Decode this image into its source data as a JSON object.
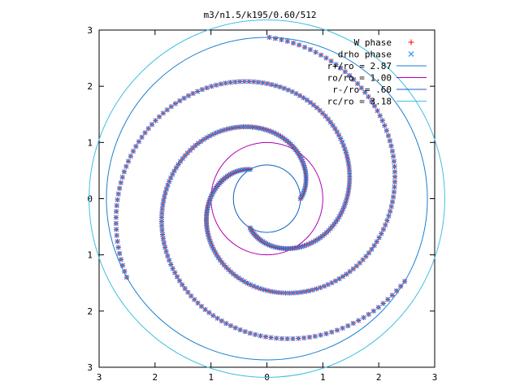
{
  "chart_data": {
    "type": "scatter",
    "title": "m3/n1.5/k195/0.60/512",
    "xlabel": "",
    "ylabel": "",
    "xlim": [
      -3,
      3
    ],
    "ylim": [
      -3,
      3
    ],
    "x_ticks": [
      {
        "value": -3,
        "label": "3"
      },
      {
        "value": -2,
        "label": "2"
      },
      {
        "value": -1,
        "label": "1"
      },
      {
        "value": 0,
        "label": "0"
      },
      {
        "value": 1,
        "label": "1"
      },
      {
        "value": 2,
        "label": "2"
      },
      {
        "value": 3,
        "label": "3"
      }
    ],
    "y_ticks": [
      {
        "value": 3,
        "label": "3"
      },
      {
        "value": 2,
        "label": "2"
      },
      {
        "value": 1,
        "label": "1"
      },
      {
        "value": 0,
        "label": "0"
      },
      {
        "value": -1,
        "label": "1"
      },
      {
        "value": -2,
        "label": "2"
      },
      {
        "value": -3,
        "label": "3"
      }
    ],
    "grid": false,
    "legend_position": "top-right",
    "colors": {
      "w_phase": "#ff0000",
      "drho_phase": "#1e90ff",
      "rt": "#1a7fd0",
      "ro": "#b000b0",
      "rs": "#1060c0",
      "rc": "#40c0e0"
    },
    "series": [
      {
        "name": "W phase",
        "kind": "points",
        "marker": "plus"
      },
      {
        "name": "drho phase",
        "kind": "points",
        "marker": "cross"
      },
      {
        "name": "r+/ro = 2.87",
        "kind": "circle",
        "radius": 2.87
      },
      {
        "name": "ro/ro = 1.00",
        "kind": "circle",
        "radius": 1.0
      },
      {
        "name": "r-/ro = .60",
        "kind": "circle",
        "radius": 0.6
      },
      {
        "name": "rc/ro = 3.18",
        "kind": "circle",
        "radius": 3.18
      }
    ],
    "spiral_arms": [
      {
        "theta_start_deg": 0,
        "r_start": 0.6,
        "r_end": 2.87,
        "pitch_deg_per_unit": 145
      },
      {
        "theta_start_deg": 120,
        "r_start": 0.6,
        "r_end": 2.87,
        "pitch_deg_per_unit": 145
      },
      {
        "theta_start_deg": 240,
        "r_start": 0.6,
        "r_end": 2.87,
        "pitch_deg_per_unit": 145
      }
    ]
  }
}
